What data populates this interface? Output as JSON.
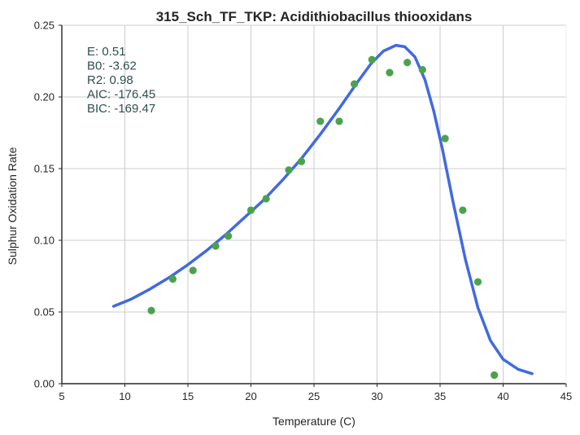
{
  "chart_data": {
    "type": "scatter",
    "title": "315_Sch_TF_TKP: Acidithiobacillus thiooxidans",
    "xlabel": "Temperature (C)",
    "ylabel": "Sulphur Oxidation Rate",
    "xlim": [
      5,
      45
    ],
    "ylim": [
      0,
      0.25
    ],
    "xticks": [
      "5",
      "10",
      "15",
      "20",
      "25",
      "30",
      "35",
      "40",
      "45"
    ],
    "yticks": [
      "0.00",
      "0.05",
      "0.10",
      "0.15",
      "0.20",
      "0.25"
    ],
    "grid": true,
    "series": [
      {
        "kind": "points",
        "color": "#4aa34c",
        "x": [
          12.1,
          13.8,
          15.4,
          17.2,
          18.2,
          20.0,
          21.2,
          23.0,
          24.0,
          25.5,
          27.0,
          28.2,
          29.6,
          31.0,
          32.4,
          33.6,
          35.4,
          36.8,
          38.0,
          39.3
        ],
        "y": [
          0.051,
          0.073,
          0.079,
          0.096,
          0.103,
          0.121,
          0.129,
          0.149,
          0.155,
          0.183,
          0.183,
          0.209,
          0.226,
          0.217,
          0.224,
          0.219,
          0.171,
          0.121,
          0.071,
          0.006
        ]
      },
      {
        "kind": "line",
        "color": "#4169e1",
        "x": [
          9.1,
          10.5,
          12.0,
          13.5,
          15.0,
          16.5,
          18.0,
          19.5,
          21.0,
          22.5,
          24.0,
          25.5,
          27.0,
          28.5,
          29.5,
          30.5,
          31.5,
          32.2,
          33.0,
          33.8,
          34.5,
          35.2,
          36.0,
          37.0,
          38.0,
          39.0,
          40.0,
          41.2,
          42.3
        ],
        "y": [
          0.054,
          0.059,
          0.066,
          0.074,
          0.083,
          0.093,
          0.104,
          0.116,
          0.128,
          0.142,
          0.157,
          0.174,
          0.192,
          0.211,
          0.223,
          0.232,
          0.236,
          0.235,
          0.228,
          0.212,
          0.19,
          0.163,
          0.128,
          0.087,
          0.053,
          0.03,
          0.017,
          0.01,
          0.007
        ]
      }
    ],
    "annotations": [
      "E:  0.51",
      "B0:  -3.62",
      "R2:  0.98",
      "AIC: -176.45",
      "BIC: -169.47"
    ],
    "annotation_color": "#2f4f4f"
  }
}
